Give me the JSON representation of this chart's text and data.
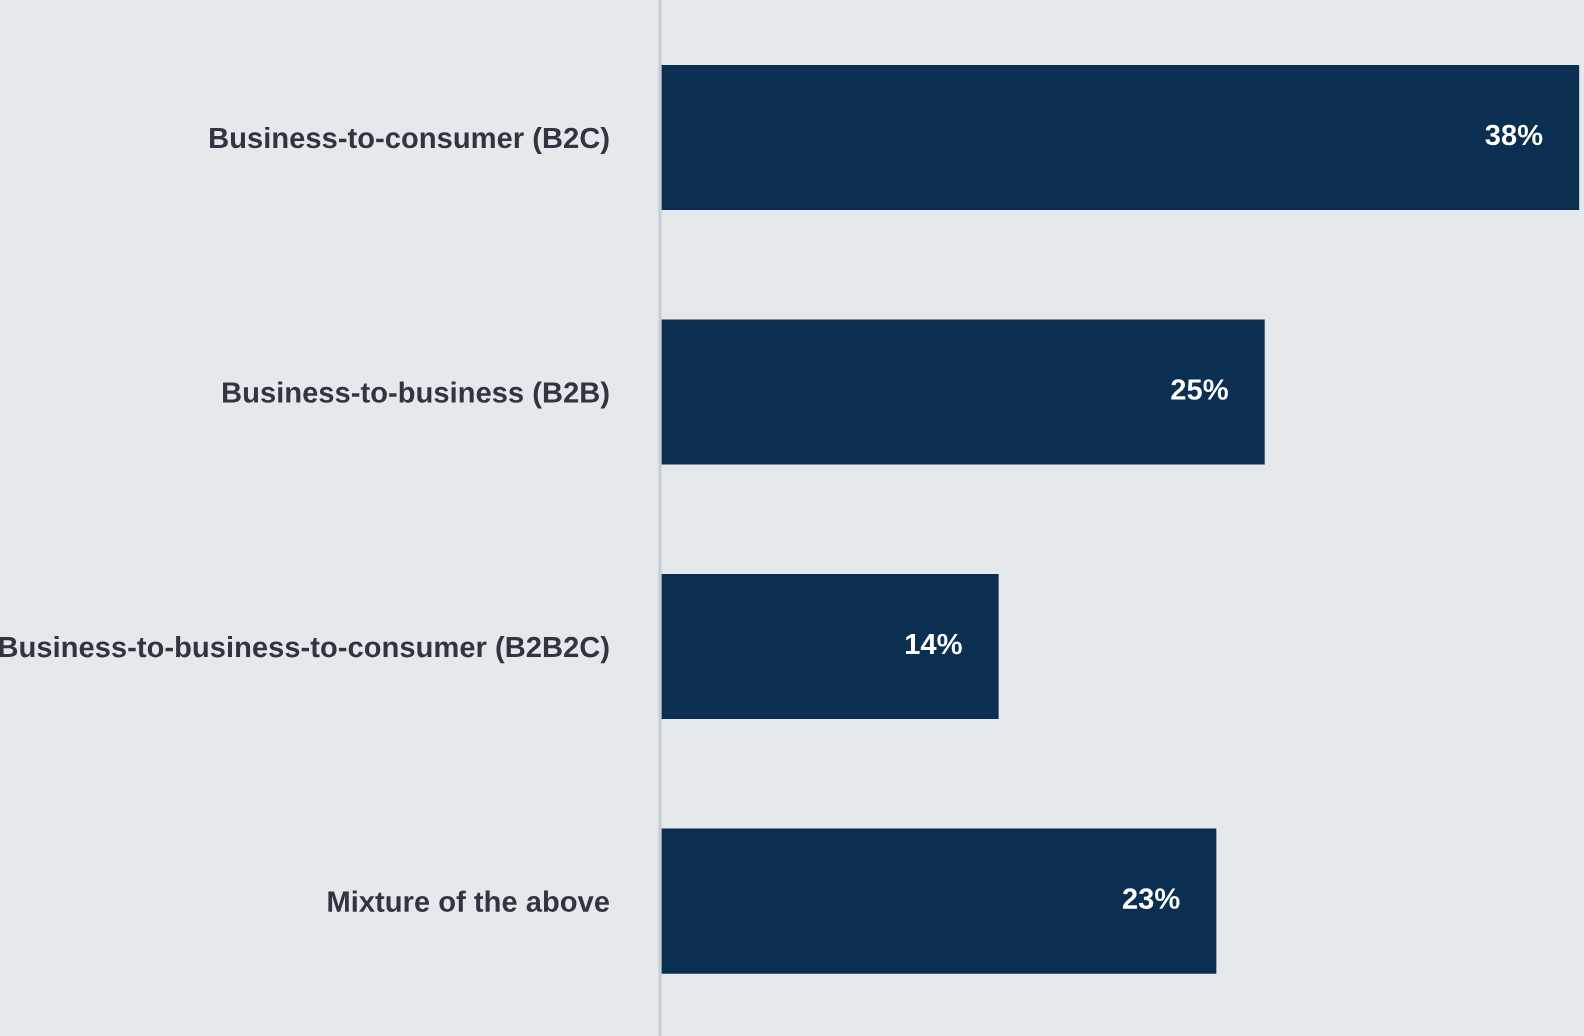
{
  "chart_data": {
    "type": "bar",
    "orientation": "horizontal",
    "categories": [
      "Business-to-consumer (B2C)",
      "Business-to-business (B2B)",
      "Business-to-business-to-consumer (B2B2C)",
      "Mixture of the above"
    ],
    "values": [
      38,
      25,
      14,
      23
    ],
    "value_labels": [
      "38%",
      "25%",
      "14%",
      "23%"
    ],
    "color": "#0b2f50",
    "xlim": [
      0,
      38.2
    ],
    "tick_labels": "y",
    "grid": false,
    "legend": false
  }
}
